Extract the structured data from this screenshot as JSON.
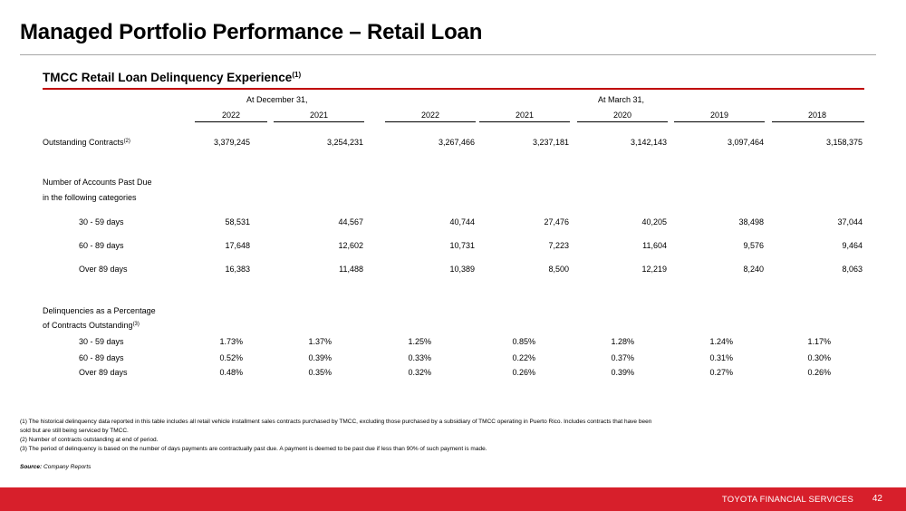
{
  "title": "Managed Portfolio Performance – Retail Loan",
  "section": {
    "title": "TMCC Retail Loan Delinquency Experience",
    "note": "(1)"
  },
  "headers": {
    "dec": "At December 31,",
    "mar": "At March 31,",
    "years": [
      "2022",
      "2021",
      "2022",
      "2021",
      "2020",
      "2019",
      "2018"
    ]
  },
  "rows": {
    "outstanding": {
      "label": "Outstanding Contracts",
      "note": "(2)",
      "values": [
        "3,379,245",
        "3,254,231",
        "3,267,466",
        "3,237,181",
        "3,142,143",
        "3,097,464",
        "3,158,375"
      ]
    },
    "past_due_heading": [
      "Number of Accounts Past Due",
      "in the following categories"
    ],
    "counts": [
      {
        "label": "30 - 59 days",
        "values": [
          "58,531",
          "44,567",
          "40,744",
          "27,476",
          "40,205",
          "38,498",
          "37,044"
        ]
      },
      {
        "label": "60 - 89 days",
        "values": [
          "17,648",
          "12,602",
          "10,731",
          "7,223",
          "11,604",
          "9,576",
          "9,464"
        ]
      },
      {
        "label": "Over 89 days",
        "values": [
          "16,383",
          "11,488",
          "10,389",
          "8,500",
          "12,219",
          "8,240",
          "8,063"
        ]
      }
    ],
    "pct_heading": [
      "Delinquencies as a Percentage",
      "of Contracts Outstanding"
    ],
    "pct_note": "(3)",
    "pcts": [
      {
        "label": "30 - 59 days",
        "values": [
          "1.73%",
          "1.37%",
          "1.25%",
          "0.85%",
          "1.28%",
          "1.24%",
          "1.17%"
        ]
      },
      {
        "label": "60 - 89 days",
        "values": [
          "0.52%",
          "0.39%",
          "0.33%",
          "0.22%",
          "0.37%",
          "0.31%",
          "0.30%"
        ]
      },
      {
        "label": "Over 89 days",
        "values": [
          "0.48%",
          "0.35%",
          "0.32%",
          "0.26%",
          "0.39%",
          "0.27%",
          "0.26%"
        ]
      }
    ]
  },
  "footnotes": [
    "(1) The historical delinquency data reported in this table includes all retail vehicle installment sales contracts purchased by TMCC, excluding those purchased by a subsidiary of TMCC operating in Puerto Rico.  Includes contracts that have been",
    "sold but are still being serviced by TMCC.",
    "(2) Number of contracts outstanding at end of period.",
    "(3) The period of delinquency is based on the number of days payments are contractually past due.  A payment is deemed to be past due if less than 90% of such payment is made."
  ],
  "source": {
    "label": "Source:",
    "text": "Company Reports"
  },
  "footer": {
    "company": "TOYOTA FINANCIAL SERVICES",
    "page": "42",
    "bar_color": "#d71f2b"
  }
}
